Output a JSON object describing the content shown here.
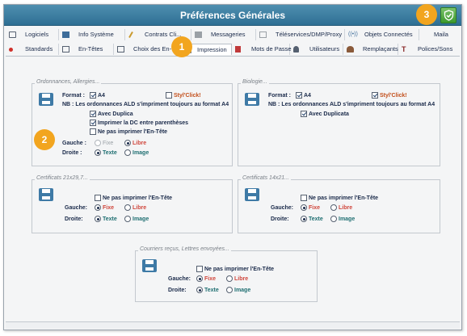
{
  "window": {
    "title": "Préférences Générales"
  },
  "tabs_row1": [
    {
      "label": "Logiciels",
      "icon": "software-icon"
    },
    {
      "label": "Info Système",
      "icon": "monitor-icon"
    },
    {
      "label": "Contrats Cli...",
      "icon": "pencil-icon"
    },
    {
      "label": "Messageries",
      "icon": "mail-icon"
    },
    {
      "label": "Téléservices/DMP/Proxy",
      "icon": "network-icon"
    },
    {
      "label": "Objets Connectés",
      "icon": "wireless-icon"
    },
    {
      "label": "Maila",
      "icon": ""
    }
  ],
  "tabs_row2": [
    {
      "label": "Standards",
      "icon": "red-dot-icon"
    },
    {
      "label": "En-Têtes",
      "icon": "document-icon"
    },
    {
      "label": "Choix des En-Têtes",
      "icon": "document-icon"
    },
    {
      "label": "Impression",
      "icon": "printer-icon"
    },
    {
      "label": "Mots de Passe",
      "icon": "key-icon"
    },
    {
      "label": "Utilisateurs",
      "icon": "user-icon"
    },
    {
      "label": "Remplaçants",
      "icon": "users-icon"
    },
    {
      "label": "Polices/Sons",
      "icon": "font-icon"
    }
  ],
  "ordonnances": {
    "title": "Ordonnances, Allergies...",
    "format_label": "Format :",
    "a4": "A4",
    "styl": "Styl'Click!",
    "nb": "NB : Les ordonnances ALD s'impriment toujours au format A4",
    "duplica": "Avec Duplica",
    "dc": "Imprimer la DC entre parenthèses",
    "no_header": "Ne pas imprimer l'En-Tête",
    "gauche": "Gauche :",
    "fixe": "Fixe",
    "libre": "Libre",
    "droite": "Droite :",
    "texte": "Texte",
    "image": "Image"
  },
  "biologie": {
    "title": "Biologie...",
    "format_label": "Format :",
    "a4": "A4",
    "styl": "Styl'Click!",
    "nb": "NB : Les ordonnances ALD s'impriment toujours au format A4",
    "duplicata": "Avec Duplicata"
  },
  "certificats_a": {
    "title": "Certificats 21x29,7...",
    "no_header": "Ne pas imprimer l'En-Tête",
    "gauche": "Gauche:",
    "fixe": "Fixe",
    "libre": "Libre",
    "droite": "Droite:",
    "texte": "Texte",
    "image": "Image"
  },
  "certificats_b": {
    "title": "Certificats 14x21...",
    "no_header": "Ne pas imprimer l'En-Tête",
    "gauche": "Gauche:",
    "fixe": "Fixe",
    "libre": "Libre",
    "droite": "Droite:",
    "texte": "Texte",
    "image": "Image"
  },
  "courriers": {
    "title": "Courriers reçus, Lettres envoyées...",
    "no_header": "Ne pas imprimer l'En-Tête",
    "gauche": "Gauche:",
    "fixe": "Fixe",
    "libre": "Libre",
    "droite": "Droite:",
    "texte": "Texte",
    "image": "Image"
  },
  "badges": {
    "one": "1",
    "two": "2",
    "three": "3"
  },
  "colors": {
    "titlebar": "#3a7fa3",
    "accent_badge": "#f2a51f",
    "ok_green": "#4fae3d"
  }
}
